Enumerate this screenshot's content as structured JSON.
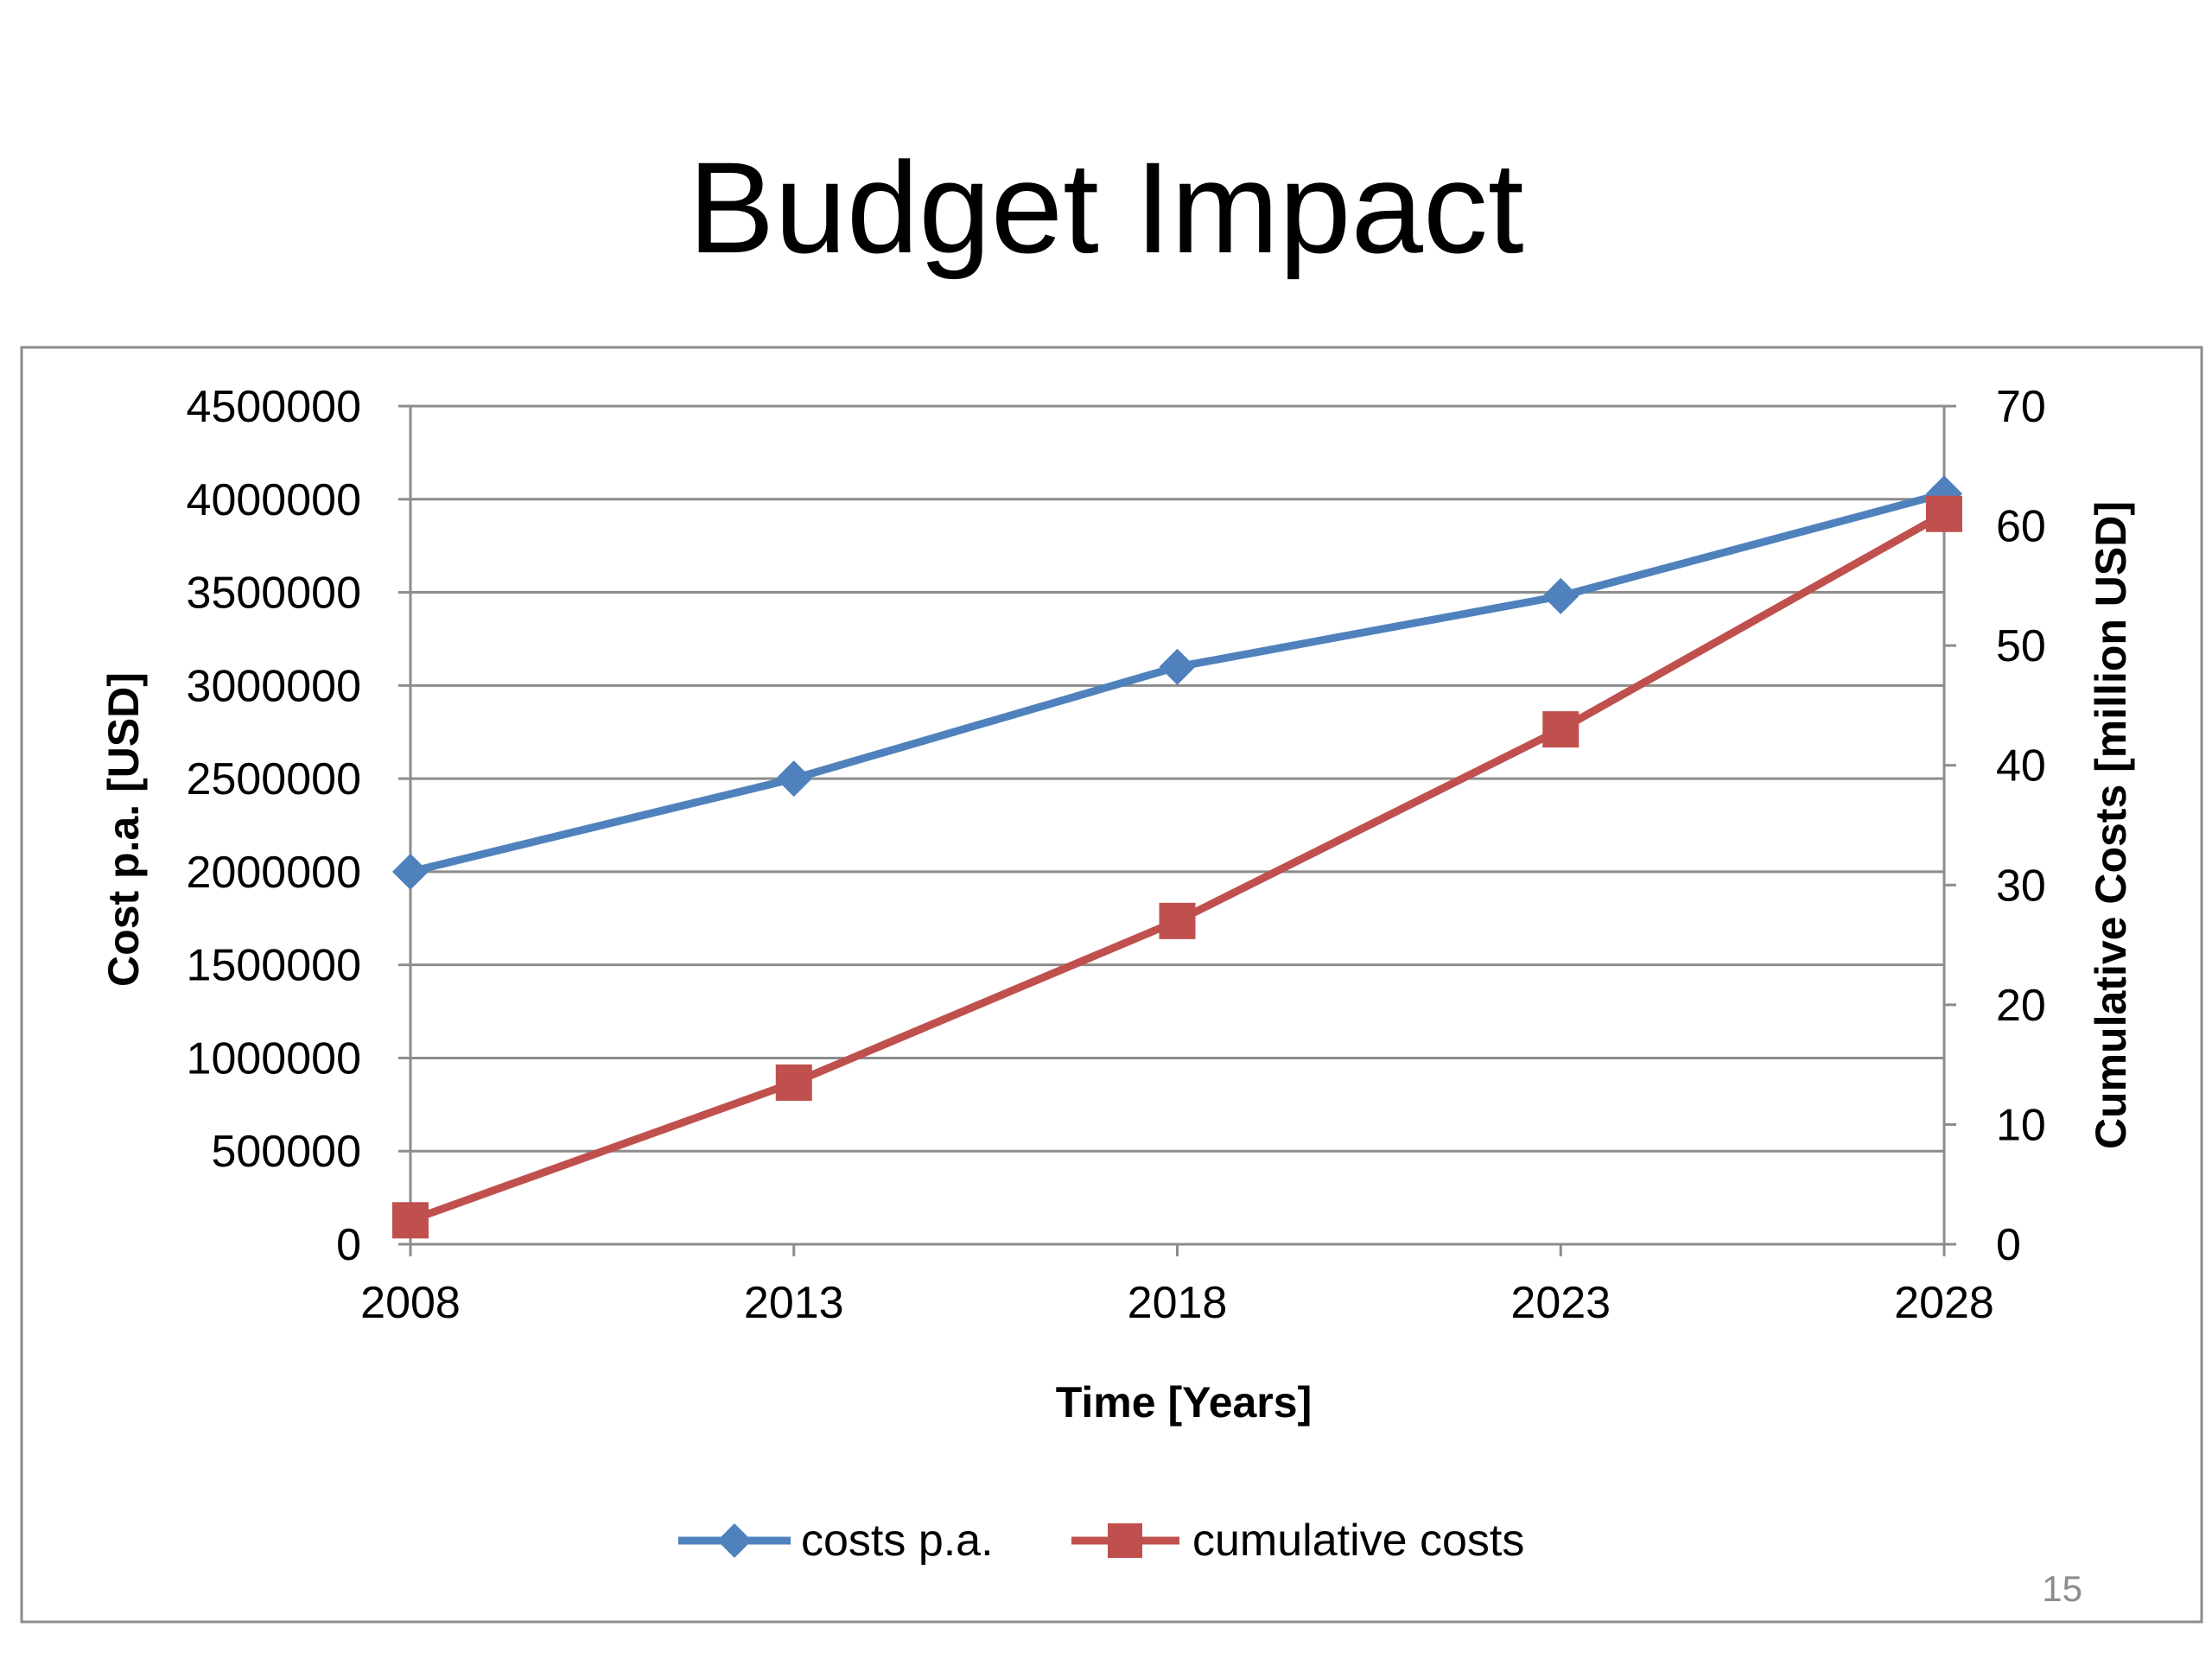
{
  "slide": {
    "title": "Budget Impact",
    "page_number": "15"
  },
  "chart_data": {
    "type": "line",
    "title": "",
    "xlabel": "Time [Years]",
    "ylabel": "Cost p.a. [USD]",
    "y2label": "Cumulative Costs [million USD]",
    "x": [
      2008,
      2013,
      2018,
      2023,
      2028
    ],
    "x_ticks": [
      "2008",
      "2013",
      "2018",
      "2023",
      "2028"
    ],
    "ylim": [
      0,
      4500000
    ],
    "y_ticks": [
      "0",
      "500000",
      "1000000",
      "1500000",
      "2000000",
      "2500000",
      "3000000",
      "3500000",
      "4000000",
      "4500000"
    ],
    "y2lim": [
      0,
      70
    ],
    "y2_ticks": [
      "0",
      "10",
      "20",
      "30",
      "40",
      "50",
      "60",
      "70"
    ],
    "grid": "horizontal",
    "legend_position": "bottom",
    "series": [
      {
        "name": "costs p.a.",
        "axis": "left",
        "marker": "diamond",
        "color": "#4f81bd",
        "values": [
          2000000,
          2500000,
          3100000,
          3480000,
          4030000
        ]
      },
      {
        "name": "cumulative costs",
        "axis": "right",
        "marker": "square",
        "color": "#c0504d",
        "values": [
          2,
          13.5,
          27,
          43,
          61
        ]
      }
    ]
  }
}
